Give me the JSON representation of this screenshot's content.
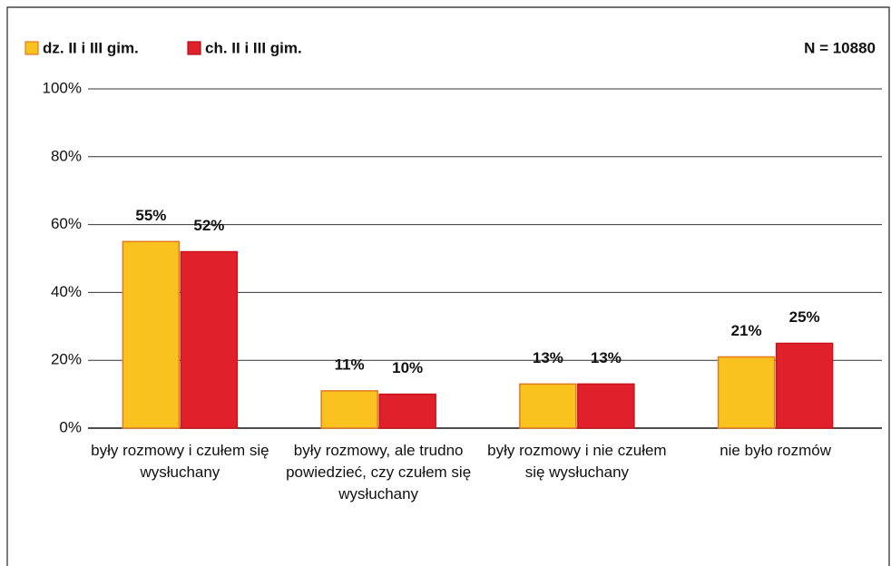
{
  "chart_data": {
    "type": "bar",
    "annotation": "N = 10880",
    "categories": [
      "były rozmowy i czułem się wysłuchany",
      "były rozmowy, ale trudno powiedzieć, czy czułem się wysłuchany",
      "były rozmowy i nie czułem się wysłuchany",
      "nie było rozmów"
    ],
    "series": [
      {
        "name": "dz. II i III gim.",
        "color": "#f9c21f",
        "values": [
          55,
          11,
          13,
          21
        ],
        "value_labels": [
          "55%",
          "11%",
          "13%",
          "21%"
        ]
      },
      {
        "name": "ch. II i III gim.",
        "color": "#e0202a",
        "values": [
          52,
          10,
          13,
          25
        ],
        "value_labels": [
          "52%",
          "10%",
          "13%",
          "25%"
        ]
      }
    ],
    "ylim": [
      0,
      100
    ],
    "yticks": [
      {
        "value": 0,
        "label": "0%"
      },
      {
        "value": 20,
        "label": "20%"
      },
      {
        "value": 40,
        "label": "40%"
      },
      {
        "value": 60,
        "label": "60%"
      },
      {
        "value": 80,
        "label": "80%"
      },
      {
        "value": 100,
        "label": "100%"
      }
    ],
    "grid": true,
    "legend": "top-left"
  }
}
